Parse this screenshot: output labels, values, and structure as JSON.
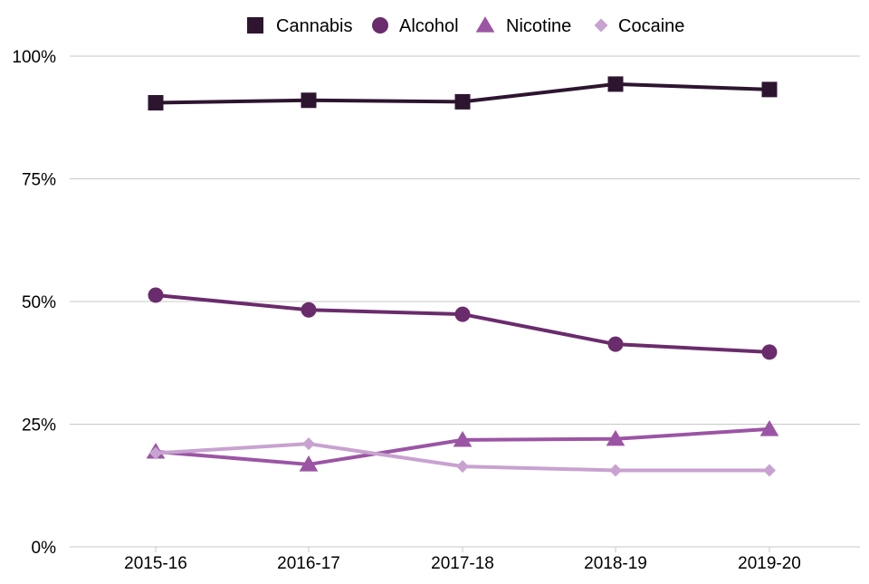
{
  "chart_data": {
    "type": "line",
    "title": "",
    "xlabel": "",
    "ylabel": "",
    "categories": [
      "2015-16",
      "2016-17",
      "2017-18",
      "2018-19",
      "2019-20"
    ],
    "ylim": [
      0,
      100
    ],
    "yticks": [
      0,
      25,
      50,
      75,
      100
    ],
    "ytick_labels": [
      "0%",
      "25%",
      "50%",
      "75%",
      "100%"
    ],
    "grid": "horizontal",
    "legend_position": "top-center",
    "series": [
      {
        "name": "Cannabis",
        "marker": "square",
        "color": "#2d1530",
        "values": [
          90.5,
          91.0,
          90.7,
          94.3,
          93.2
        ]
      },
      {
        "name": "Alcohol",
        "marker": "circle",
        "color": "#6a2c6c",
        "values": [
          51.3,
          48.3,
          47.4,
          41.3,
          39.7
        ]
      },
      {
        "name": "Nicotine",
        "marker": "triangle",
        "color": "#9b55a4",
        "values": [
          19.4,
          16.8,
          21.8,
          22.0,
          24.0
        ]
      },
      {
        "name": "Cocaine",
        "marker": "diamond",
        "color": "#c8a2d0",
        "values": [
          19.1,
          21.0,
          16.4,
          15.6,
          15.6
        ]
      }
    ]
  }
}
